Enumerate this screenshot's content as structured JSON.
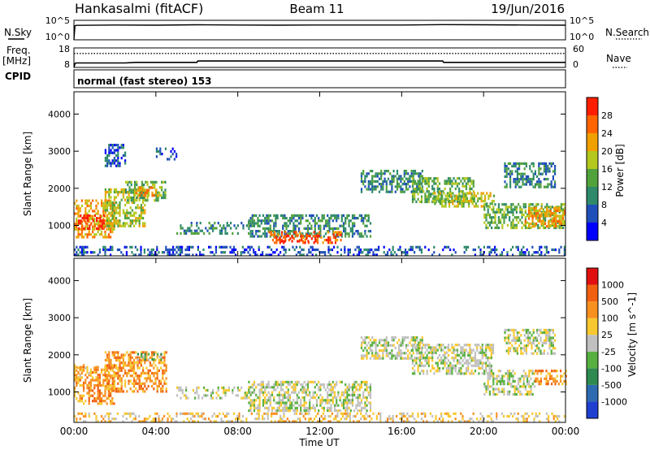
{
  "header": {
    "station": "Hankasalmi (fitACF)",
    "beam": "Beam 11",
    "date": "19/Jun/2016"
  },
  "chart_data": [
    {
      "type": "line",
      "name": "nsky-nsearch-panel",
      "left_label": "N.Sky",
      "right_label": "N.Search",
      "left_ticks": [
        "10^5",
        "10^0"
      ],
      "right_ticks": [
        "10^5",
        "10^0"
      ],
      "series": [
        {
          "label": "N.Sky",
          "style": "solid",
          "x": [
            0,
            0.05,
            0.1,
            2,
            4,
            6,
            8,
            10,
            12,
            14,
            16,
            18,
            20,
            22,
            24
          ],
          "y": [
            0,
            3.6,
            3.7,
            3.8,
            3.75,
            3.85,
            3.8,
            3.75,
            3.8,
            3.8,
            3.8,
            3.9,
            3.85,
            3.8,
            3.75
          ]
        }
      ]
    },
    {
      "type": "line",
      "name": "freq-nave-panel",
      "left_label": "Freq. [MHz]",
      "right_label": "Nave",
      "left_ticks": [
        18,
        8
      ],
      "right_ticks": [
        60,
        0
      ],
      "left_ylim": [
        8,
        18
      ],
      "right_ylim": [
        0,
        60
      ],
      "series": [
        {
          "label": "Freq.",
          "style": "solid",
          "x": [
            0,
            0.05,
            0.1,
            2.5,
            3,
            6,
            6.05,
            18,
            18.05,
            24
          ],
          "y": [
            8,
            10,
            10.3,
            10.3,
            10.6,
            10.6,
            11.3,
            11.3,
            10.6,
            10.6
          ]
        },
        {
          "label": "Nave",
          "style": "dotted",
          "x": [
            0,
            24
          ],
          "y": [
            43,
            43
          ]
        }
      ]
    },
    {
      "type": "heatmap",
      "name": "power-panel",
      "ylabel": "Slant Range [km]",
      "yticks": [
        1000,
        2000,
        3000,
        4000
      ],
      "ylim": [
        180,
        4600
      ],
      "xlim": [
        0,
        24
      ],
      "colorbar": {
        "label": "Power [dB]",
        "ticks": [
          "4",
          "8",
          "12",
          "16",
          "20",
          "24",
          "28"
        ],
        "colors": [
          "#0000ff",
          "#1f4fb8",
          "#2e8a6a",
          "#52a23c",
          "#b4c81e",
          "#f0a000",
          "#ff6400",
          "#ff1e00"
        ]
      },
      "regions": [
        {
          "t0": 0.0,
          "t1": 2.0,
          "r0": 700,
          "r1": 1700,
          "level": 5
        },
        {
          "t0": 0.2,
          "t1": 1.5,
          "r0": 900,
          "r1": 1300,
          "level": 7
        },
        {
          "t0": 1.5,
          "t1": 3.5,
          "r0": 1000,
          "r1": 2000,
          "level": 4
        },
        {
          "t0": 2.5,
          "t1": 4.5,
          "r0": 1700,
          "r1": 2200,
          "level": 3
        },
        {
          "t0": 3.0,
          "t1": 4.3,
          "r0": 1800,
          "r1": 2050,
          "level": 5
        },
        {
          "t0": 5.0,
          "t1": 8.5,
          "r0": 800,
          "r1": 1100,
          "level": 2
        },
        {
          "t0": 8.5,
          "t1": 14.5,
          "r0": 700,
          "r1": 1300,
          "level": 2
        },
        {
          "t0": 9.5,
          "t1": 13.0,
          "r0": 550,
          "r1": 850,
          "level": 6
        },
        {
          "t0": 10.0,
          "t1": 12.0,
          "r0": 600,
          "r1": 750,
          "level": 7
        },
        {
          "t0": 14.0,
          "t1": 17.0,
          "r0": 1900,
          "r1": 2500,
          "level": 2
        },
        {
          "t0": 16.5,
          "t1": 19.5,
          "r0": 1600,
          "r1": 2300,
          "level": 3
        },
        {
          "t0": 17.5,
          "t1": 20.5,
          "r0": 1500,
          "r1": 1900,
          "level": 4
        },
        {
          "t0": 20.0,
          "t1": 24.0,
          "r0": 900,
          "r1": 1600,
          "level": 3
        },
        {
          "t0": 22.0,
          "t1": 24.0,
          "r0": 1000,
          "r1": 1500,
          "level": 5
        },
        {
          "t0": 21.0,
          "t1": 23.5,
          "r0": 2000,
          "r1": 2700,
          "level": 2
        },
        {
          "t0": 1.5,
          "t1": 2.5,
          "r0": 2600,
          "r1": 3200,
          "level": 1
        },
        {
          "t0": 4.0,
          "t1": 5.0,
          "r0": 2800,
          "r1": 3100,
          "level": 1
        },
        {
          "t0": 0.0,
          "t1": 24.0,
          "r0": 200,
          "r1": 450,
          "level": 1
        }
      ]
    },
    {
      "type": "heatmap",
      "name": "velocity-panel",
      "ylabel": "Slant Range [km]",
      "yticks": [
        1000,
        2000,
        3000,
        4000
      ],
      "ylim": [
        180,
        4600
      ],
      "xlim": [
        0,
        24
      ],
      "xticks": [
        "00:00",
        "04:00",
        "08:00",
        "12:00",
        "16:00",
        "20:00",
        "00:00"
      ],
      "xlabel": "Time UT",
      "colorbar": {
        "label": "Velocity [m s^-1]",
        "ticks": [
          "1000",
          "500",
          "100",
          "25",
          "-25",
          "-100",
          "-500",
          "-1000"
        ],
        "colors": [
          "#1f3fd0",
          "#2e6ab0",
          "#2e8a50",
          "#58b040",
          "#c0c0c0",
          "#f8c830",
          "#f89020",
          "#f06010",
          "#e01010"
        ]
      },
      "regions": [
        {
          "t0": 0.0,
          "t1": 2.0,
          "r0": 700,
          "r1": 1700,
          "level": 6
        },
        {
          "t0": 1.5,
          "t1": 4.5,
          "r0": 1000,
          "r1": 2100,
          "level": 6
        },
        {
          "t0": 3.0,
          "t1": 4.3,
          "r0": 1850,
          "r1": 2050,
          "level": 3
        },
        {
          "t0": 0.0,
          "t1": 1.0,
          "r0": 1400,
          "r1": 1750,
          "level": 5
        },
        {
          "t0": 5.0,
          "t1": 8.5,
          "r0": 800,
          "r1": 1150,
          "level": 4
        },
        {
          "t0": 8.5,
          "t1": 14.5,
          "r0": 500,
          "r1": 1300,
          "level": 4
        },
        {
          "t0": 14.0,
          "t1": 17.0,
          "r0": 1900,
          "r1": 2500,
          "level": 4
        },
        {
          "t0": 16.5,
          "t1": 20.5,
          "r0": 1500,
          "r1": 2300,
          "level": 4
        },
        {
          "t0": 20.0,
          "t1": 22.5,
          "r0": 900,
          "r1": 1600,
          "level": 4
        },
        {
          "t0": 22.5,
          "t1": 24.0,
          "r0": 1200,
          "r1": 1600,
          "level": 6
        },
        {
          "t0": 21.0,
          "t1": 23.5,
          "r0": 2000,
          "r1": 2700,
          "level": 4
        },
        {
          "t0": 0.0,
          "t1": 24.0,
          "r0": 200,
          "r1": 450,
          "level": 5
        }
      ]
    }
  ],
  "cpid": {
    "label": "CPID",
    "text": "normal (fast stereo) 153"
  }
}
